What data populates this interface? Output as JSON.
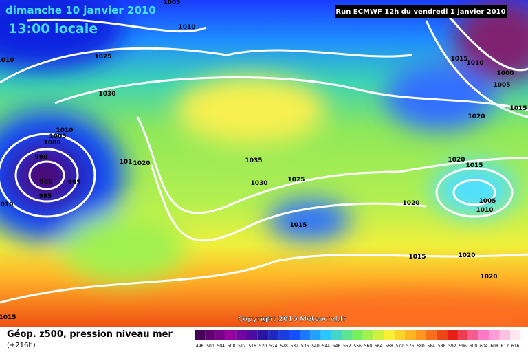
{
  "header": {
    "title": "dimanche 10 janvier 2010",
    "time": "13:00 locale",
    "run": "Run ECMWF 12h du vendredi 1 janvier 2010"
  },
  "copyright": "Copyright 2010 Meteociel.fr",
  "legend": {
    "title": "Géop. z500, pression niveau mer",
    "lead": "(+216h)",
    "scale": [
      "496",
      "500",
      "504",
      "508",
      "512",
      "516",
      "520",
      "524",
      "528",
      "532",
      "536",
      "540",
      "544",
      "548",
      "552",
      "556",
      "560",
      "564",
      "568",
      "572",
      "576",
      "580",
      "584",
      "588",
      "592",
      "596",
      "600",
      "604",
      "608",
      "612",
      "616"
    ]
  },
  "isobar_labels": [
    "1005",
    "1010",
    "1010",
    "1025",
    "1030",
    "1010",
    "1005",
    "1000",
    "990",
    "980",
    "995",
    "995",
    "1010",
    "101",
    "1020",
    "1035",
    "1030",
    "1025",
    "1015",
    "1020",
    "1015",
    "1020",
    "1020",
    "1020",
    "1015",
    "1005",
    "1010",
    "1020",
    "1015",
    "1010",
    "1000",
    "1005",
    "1015",
    "1015"
  ]
}
